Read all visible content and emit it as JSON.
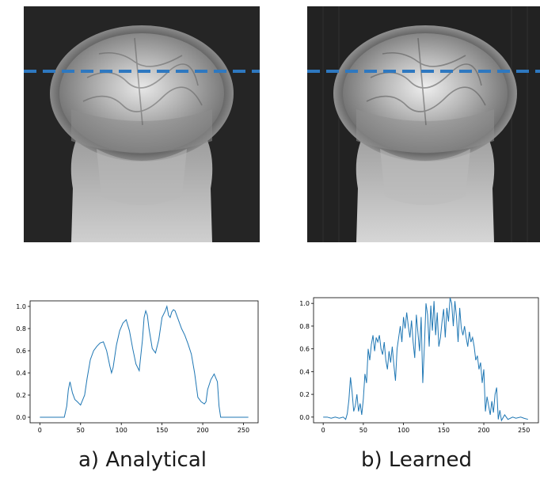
{
  "captions": {
    "a": "a) Analytical",
    "b": "b) Learned"
  },
  "colors": {
    "profile": "#1f77b4",
    "scan_line": "#2e78c0",
    "scan_background": "#252525"
  },
  "chart_data": [
    {
      "type": "line",
      "panel": "a",
      "x": [
        0,
        10,
        20,
        30,
        33,
        35,
        37,
        40,
        43,
        46,
        50,
        55,
        58,
        62,
        66,
        70,
        74,
        78,
        82,
        86,
        88,
        90,
        94,
        98,
        102,
        106,
        110,
        114,
        118,
        122,
        126,
        128,
        130,
        132,
        134,
        138,
        142,
        146,
        150,
        154,
        156,
        158,
        160,
        162,
        164,
        166,
        170,
        174,
        178,
        182,
        186,
        190,
        194,
        198,
        202,
        204,
        206,
        210,
        214,
        218,
        220,
        222,
        230,
        240,
        256
      ],
      "y": [
        0,
        0,
        0,
        0,
        0.1,
        0.25,
        0.32,
        0.22,
        0.16,
        0.14,
        0.11,
        0.2,
        0.35,
        0.52,
        0.6,
        0.64,
        0.67,
        0.68,
        0.6,
        0.46,
        0.4,
        0.45,
        0.65,
        0.78,
        0.85,
        0.88,
        0.78,
        0.62,
        0.48,
        0.42,
        0.7,
        0.9,
        0.96,
        0.92,
        0.8,
        0.62,
        0.58,
        0.7,
        0.9,
        0.96,
        1.0,
        0.92,
        0.9,
        0.95,
        0.97,
        0.96,
        0.88,
        0.8,
        0.74,
        0.66,
        0.57,
        0.4,
        0.18,
        0.14,
        0.12,
        0.14,
        0.25,
        0.34,
        0.39,
        0.32,
        0.1,
        0,
        0,
        0,
        0
      ],
      "xticks": [
        0,
        50,
        100,
        150,
        200,
        250
      ],
      "yticks": [
        0.0,
        0.2,
        0.4,
        0.6,
        0.8,
        1.0
      ],
      "xlim": [
        -12,
        268
      ],
      "ylim": [
        -0.05,
        1.05
      ]
    },
    {
      "type": "line",
      "panel": "b",
      "x": [
        0,
        5,
        10,
        15,
        20,
        25,
        28,
        30,
        32,
        34,
        36,
        38,
        40,
        42,
        44,
        46,
        48,
        50,
        52,
        54,
        56,
        58,
        60,
        62,
        64,
        66,
        68,
        70,
        72,
        74,
        76,
        78,
        80,
        82,
        84,
        86,
        88,
        90,
        92,
        94,
        96,
        98,
        100,
        102,
        104,
        106,
        108,
        110,
        112,
        114,
        116,
        118,
        120,
        122,
        124,
        126,
        128,
        130,
        132,
        134,
        136,
        138,
        140,
        142,
        144,
        146,
        148,
        150,
        152,
        154,
        156,
        158,
        160,
        162,
        164,
        166,
        168,
        170,
        172,
        174,
        176,
        178,
        180,
        182,
        184,
        186,
        188,
        190,
        192,
        194,
        196,
        198,
        200,
        202,
        204,
        206,
        208,
        210,
        212,
        214,
        216,
        218,
        220,
        222,
        226,
        230,
        236,
        240,
        246,
        250,
        255
      ],
      "y": [
        0,
        0,
        -0.01,
        0,
        -0.01,
        0,
        -0.02,
        0.03,
        0.15,
        0.35,
        0.22,
        0.05,
        0.1,
        0.2,
        0.05,
        0.12,
        0.02,
        0.16,
        0.38,
        0.3,
        0.6,
        0.5,
        0.64,
        0.72,
        0.58,
        0.7,
        0.66,
        0.72,
        0.6,
        0.55,
        0.66,
        0.5,
        0.42,
        0.58,
        0.48,
        0.62,
        0.46,
        0.32,
        0.6,
        0.7,
        0.8,
        0.66,
        0.88,
        0.78,
        0.92,
        0.8,
        0.7,
        0.85,
        0.66,
        0.52,
        0.9,
        0.74,
        0.58,
        0.88,
        0.3,
        0.62,
        1.0,
        0.9,
        0.62,
        0.98,
        0.76,
        1.02,
        0.72,
        0.92,
        0.62,
        0.7,
        0.84,
        0.95,
        0.7,
        0.96,
        0.84,
        1.05,
        1.0,
        0.8,
        1.02,
        0.88,
        0.66,
        0.96,
        0.78,
        0.72,
        0.8,
        0.7,
        0.62,
        0.75,
        0.66,
        0.7,
        0.62,
        0.5,
        0.54,
        0.42,
        0.48,
        0.3,
        0.42,
        0.05,
        0.18,
        0.1,
        0.02,
        0.14,
        0.04,
        0.2,
        0.26,
        -0.02,
        0.06,
        -0.03,
        0.02,
        -0.02,
        0,
        -0.01,
        0,
        -0.01,
        -0.02
      ],
      "xticks": [
        0,
        50,
        100,
        150,
        200,
        250
      ],
      "yticks": [
        0.0,
        0.2,
        0.4,
        0.6,
        0.8,
        1.0
      ],
      "xlim": [
        -12,
        268
      ],
      "ylim": [
        -0.05,
        1.05
      ]
    }
  ]
}
